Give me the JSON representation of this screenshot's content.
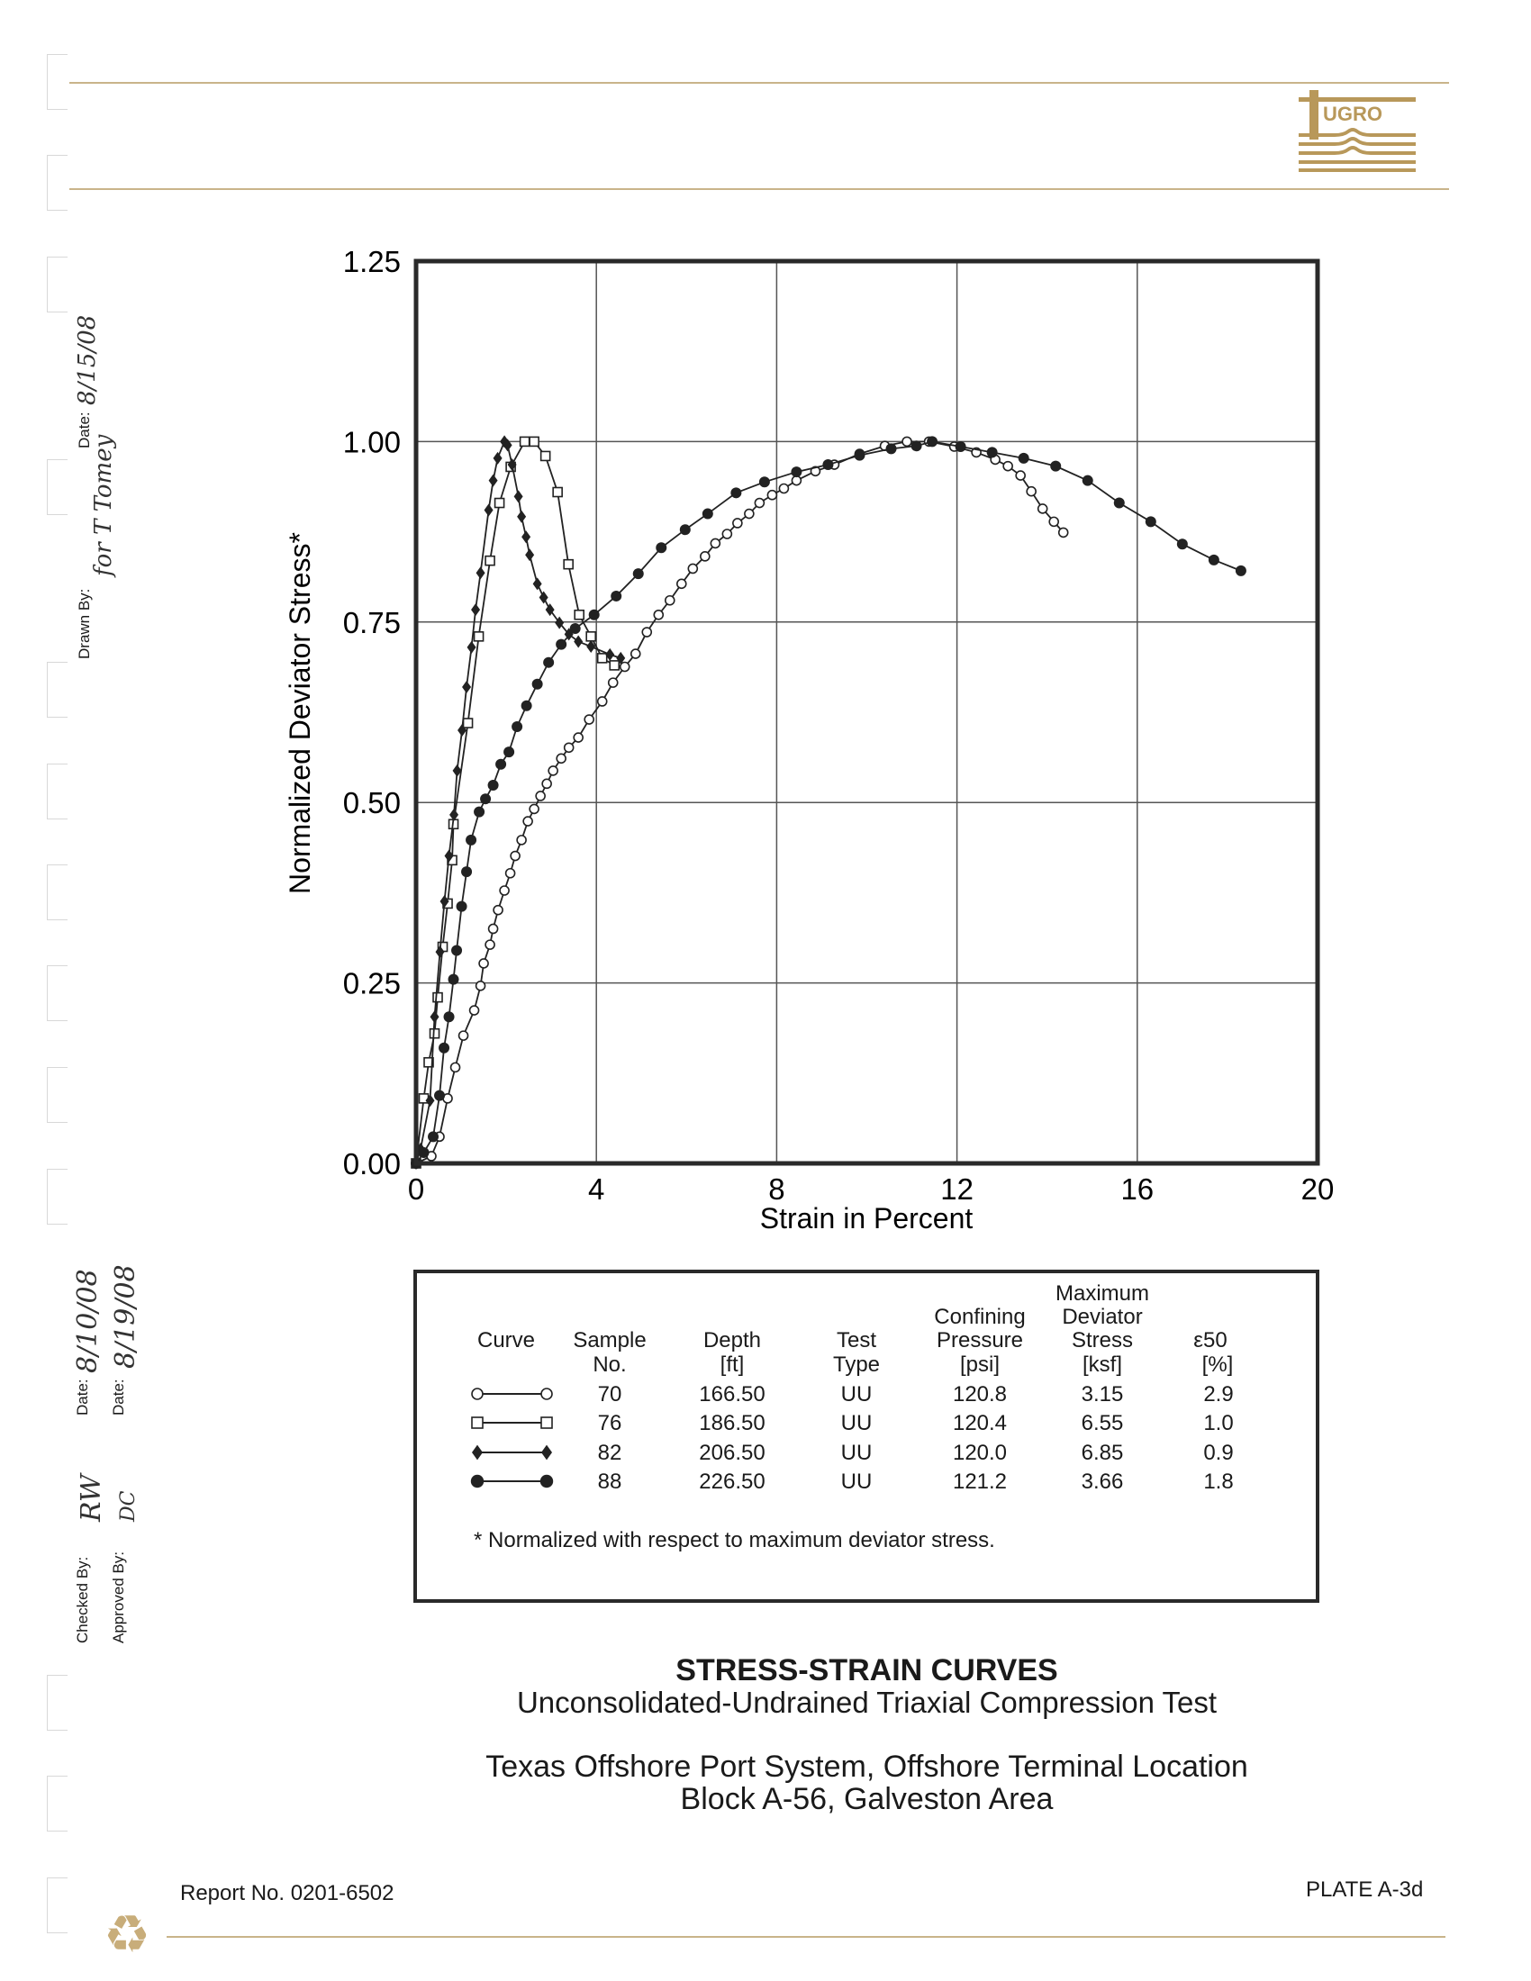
{
  "logo": {
    "text": "FUGRO",
    "color": "#b8985a"
  },
  "signoff": {
    "drawn_by_label": "Drawn By:",
    "drawn_date_label": "Date:",
    "checked_by_label": "Checked By:",
    "checked_date_label": "Date:",
    "approved_by_label": "Approved By:",
    "approved_date_label": "Date:",
    "drawn_signature": "for T Tomey",
    "drawn_date": "8/15/08",
    "checked_signature": "RW",
    "checked_date": "8/10/08",
    "approved_signature": "DC",
    "approved_date": "8/19/08"
  },
  "chart_data": {
    "type": "scatter",
    "xlabel": "Strain in Percent",
    "ylabel": "Normalized Deviator Stress*",
    "xlim": [
      0,
      20
    ],
    "ylim": [
      0,
      1.25
    ],
    "xticks": [
      "0",
      "4",
      "8",
      "12",
      "16",
      "20"
    ],
    "yticks": [
      "0.00",
      "0.25",
      "0.50",
      "0.75",
      "1.00",
      "1.25"
    ],
    "grid": true,
    "series": [
      {
        "name": "70",
        "marker": "open-circle",
        "x": [
          0,
          0.34,
          0.52,
          0.7,
          0.87,
          1.05,
          1.29,
          1.43,
          1.5,
          1.64,
          1.71,
          1.82,
          1.96,
          2.09,
          2.2,
          2.34,
          2.48,
          2.62,
          2.76,
          2.9,
          3.04,
          3.22,
          3.39,
          3.6,
          3.84,
          4.13,
          4.37,
          4.63,
          4.87,
          5.12,
          5.38,
          5.63,
          5.89,
          6.14,
          6.41,
          6.64,
          6.9,
          7.13,
          7.39,
          7.62,
          7.9,
          8.16,
          8.44,
          8.86,
          9.28,
          9.84,
          10.4,
          10.89,
          11.38,
          11.94,
          12.43,
          12.85,
          13.13,
          13.41,
          13.65,
          13.9,
          14.15,
          14.36
        ],
        "y": [
          0,
          0.01,
          0.037,
          0.09,
          0.133,
          0.177,
          0.212,
          0.246,
          0.277,
          0.303,
          0.325,
          0.351,
          0.378,
          0.402,
          0.426,
          0.448,
          0.474,
          0.491,
          0.509,
          0.526,
          0.544,
          0.561,
          0.576,
          0.59,
          0.615,
          0.64,
          0.666,
          0.688,
          0.706,
          0.736,
          0.76,
          0.78,
          0.803,
          0.824,
          0.841,
          0.859,
          0.872,
          0.887,
          0.9,
          0.915,
          0.926,
          0.935,
          0.946,
          0.959,
          0.968,
          0.983,
          0.994,
          1.0,
          1.0,
          0.993,
          0.985,
          0.975,
          0.966,
          0.953,
          0.931,
          0.907,
          0.889,
          0.874
        ]
      },
      {
        "name": "76",
        "marker": "open-square",
        "x": [
          0,
          0.17,
          0.28,
          0.41,
          0.48,
          0.59,
          0.7,
          0.8,
          0.83,
          1.15,
          1.39,
          1.64,
          1.85,
          2.1,
          2.41,
          2.62,
          2.87,
          3.14,
          3.38,
          3.62,
          3.88,
          4.13,
          4.4
        ],
        "y": [
          0,
          0.09,
          0.14,
          0.18,
          0.23,
          0.3,
          0.36,
          0.42,
          0.47,
          0.61,
          0.73,
          0.835,
          0.915,
          0.965,
          1.0,
          1.0,
          0.98,
          0.93,
          0.83,
          0.76,
          0.73,
          0.7,
          0.69
        ]
      },
      {
        "name": "82",
        "marker": "filled-diamond",
        "x": [
          0,
          0.1,
          0.31,
          0.41,
          0.53,
          0.63,
          0.73,
          0.84,
          0.91,
          1.02,
          1.12,
          1.23,
          1.32,
          1.43,
          1.61,
          1.71,
          1.81,
          1.96,
          2.03,
          2.13,
          2.27,
          2.34,
          2.44,
          2.52,
          2.69,
          2.83,
          2.97,
          3.18,
          3.39,
          3.6,
          3.88,
          4.3,
          4.54
        ],
        "y": [
          0,
          0.02,
          0.087,
          0.203,
          0.293,
          0.363,
          0.426,
          0.483,
          0.544,
          0.6,
          0.66,
          0.715,
          0.767,
          0.818,
          0.905,
          0.946,
          0.977,
          1.0,
          0.995,
          0.968,
          0.924,
          0.896,
          0.868,
          0.843,
          0.803,
          0.784,
          0.767,
          0.749,
          0.733,
          0.723,
          0.716,
          0.705,
          0.7
        ]
      },
      {
        "name": "88",
        "marker": "filled-circle",
        "x": [
          0,
          0.17,
          0.38,
          0.52,
          0.62,
          0.73,
          0.83,
          0.9,
          1.01,
          1.12,
          1.22,
          1.4,
          1.54,
          1.71,
          1.88,
          2.06,
          2.24,
          2.45,
          2.69,
          2.94,
          3.22,
          3.53,
          3.95,
          4.44,
          4.93,
          5.44,
          5.97,
          6.47,
          7.1,
          7.73,
          8.44,
          9.14,
          9.84,
          10.54,
          11.1,
          11.45,
          12.08,
          12.78,
          13.48,
          14.19,
          14.9,
          15.6,
          16.3,
          17.0,
          17.7,
          18.3
        ],
        "y": [
          0,
          0.015,
          0.037,
          0.094,
          0.16,
          0.203,
          0.255,
          0.295,
          0.356,
          0.404,
          0.448,
          0.487,
          0.505,
          0.524,
          0.553,
          0.57,
          0.605,
          0.634,
          0.664,
          0.694,
          0.719,
          0.741,
          0.76,
          0.786,
          0.817,
          0.853,
          0.878,
          0.9,
          0.929,
          0.944,
          0.958,
          0.968,
          0.981,
          0.99,
          0.994,
          1.0,
          0.993,
          0.985,
          0.977,
          0.966,
          0.946,
          0.915,
          0.889,
          0.858,
          0.836,
          0.821
        ]
      }
    ]
  },
  "legend_table": {
    "headers": {
      "curve": "Curve",
      "sample": [
        "Sample",
        "No."
      ],
      "depth": [
        "Depth",
        "[ft]"
      ],
      "test": [
        "Test",
        "Type"
      ],
      "confining": [
        "Confining",
        "Pressure",
        "[psi]"
      ],
      "maxdev": [
        "Maximum",
        "Deviator",
        "Stress",
        "[ksf]"
      ],
      "e50": [
        "ε50",
        "[%]"
      ]
    },
    "rows": [
      {
        "marker": "open-circle",
        "sample": "70",
        "depth": "166.50",
        "test": "UU",
        "confining": "120.8",
        "maxdev": "3.15",
        "e50": "2.9"
      },
      {
        "marker": "open-square",
        "sample": "76",
        "depth": "186.50",
        "test": "UU",
        "confining": "120.4",
        "maxdev": "6.55",
        "e50": "1.0"
      },
      {
        "marker": "filled-diamond",
        "sample": "82",
        "depth": "206.50",
        "test": "UU",
        "confining": "120.0",
        "maxdev": "6.85",
        "e50": "0.9"
      },
      {
        "marker": "filled-circle",
        "sample": "88",
        "depth": "226.50",
        "test": "UU",
        "confining": "121.2",
        "maxdev": "3.66",
        "e50": "1.8"
      }
    ],
    "footnote": "* Normalized with respect to maximum deviator stress."
  },
  "titles": {
    "main": "STRESS-STRAIN CURVES",
    "sub": "Unconsolidated-Undrained Triaxial Compression Test",
    "project": "Texas Offshore Port System, Offshore Terminal Location",
    "location": "Block A-56, Galveston Area"
  },
  "footer": {
    "report": "Report No. 0201-6502",
    "plate": "PLATE A-3d"
  }
}
